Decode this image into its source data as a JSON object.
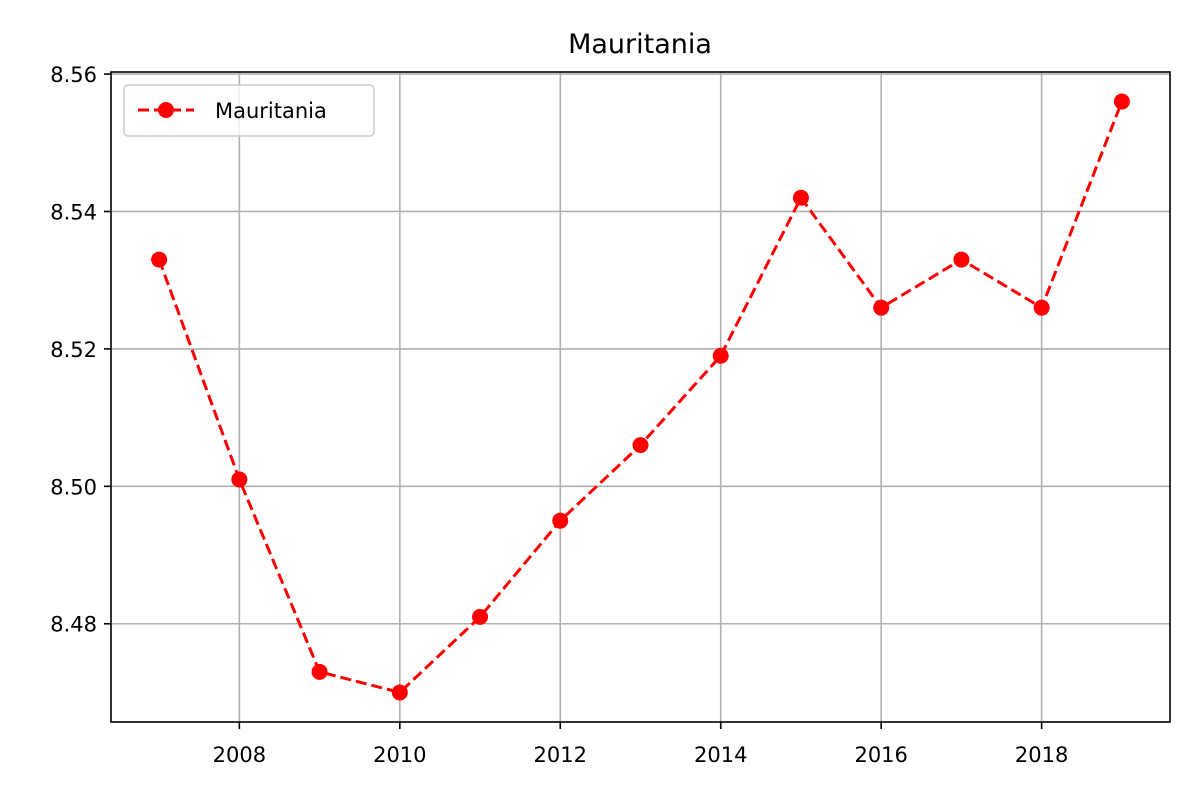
{
  "chart_data": {
    "type": "line",
    "title": "Mauritania",
    "xlabel": "",
    "ylabel": "",
    "x": [
      2007,
      2008,
      2009,
      2010,
      2011,
      2012,
      2013,
      2014,
      2015,
      2016,
      2017,
      2018,
      2019
    ],
    "series": [
      {
        "name": "Mauritania",
        "values": [
          8.533,
          8.501,
          8.473,
          8.47,
          8.481,
          8.495,
          8.506,
          8.519,
          8.542,
          8.526,
          8.533,
          8.526,
          8.556
        ],
        "color": "#ff0000",
        "line_style": "dashed",
        "marker": "circle"
      }
    ],
    "xlim": [
      2006.4,
      2019.6
    ],
    "ylim": [
      8.4657,
      8.5603
    ],
    "x_ticks": [
      2008,
      2010,
      2012,
      2014,
      2016,
      2018
    ],
    "x_tick_labels": [
      "2008",
      "2010",
      "2012",
      "2014",
      "2016",
      "2018"
    ],
    "y_ticks": [
      8.48,
      8.5,
      8.52,
      8.54,
      8.56
    ],
    "y_tick_labels": [
      "8.48",
      "8.50",
      "8.52",
      "8.54",
      "8.56"
    ],
    "grid": true,
    "grid_color": "#b0b0b0",
    "legend_position": "upper-left"
  }
}
